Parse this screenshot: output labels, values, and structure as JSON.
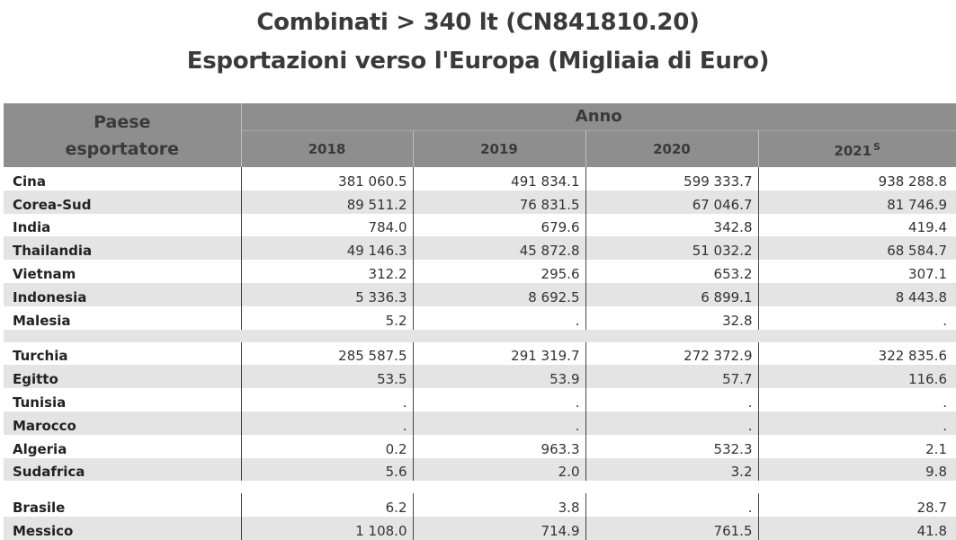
{
  "title": {
    "line1": "Combinati > 340 lt (CN841810.20)",
    "line2": "Esportazioni verso l'Europa (Migliaia di Euro)"
  },
  "header": {
    "country_label_line1": "Paese",
    "country_label_line2": "esportatore",
    "year_group_label": "Anno",
    "years": [
      "2018",
      "2019",
      "2020",
      "2021"
    ],
    "year_2021_flag": "S"
  },
  "rows": [
    {
      "country": "Cina",
      "values": [
        "381 060.5",
        "491 834.1",
        "599 333.7",
        "938 288.8"
      ]
    },
    {
      "country": "Corea-Sud",
      "values": [
        "89 511.2",
        "76 831.5",
        "67 046.7",
        "81 746.9"
      ]
    },
    {
      "country": "India",
      "values": [
        "784.0",
        "679.6",
        "342.8",
        "419.4"
      ]
    },
    {
      "country": "Thailandia",
      "values": [
        "49 146.3",
        "45 872.8",
        "51 032.2",
        "68 584.7"
      ]
    },
    {
      "country": "Vietnam",
      "values": [
        "312.2",
        "295.6",
        "653.2",
        "307.1"
      ]
    },
    {
      "country": "Indonesia",
      "values": [
        "5 336.3",
        "8 692.5",
        "6 899.1",
        "8 443.8"
      ]
    },
    {
      "country": "Malesia",
      "values": [
        "5.2",
        ".",
        "32.8",
        "."
      ]
    },
    {
      "country": "Turchia",
      "values": [
        "285 587.5",
        "291 319.7",
        "272 372.9",
        "322 835.6"
      ]
    },
    {
      "country": "Egitto",
      "values": [
        "53.5",
        "53.9",
        "57.7",
        "116.6"
      ]
    },
    {
      "country": "Tunisia",
      "values": [
        ".",
        ".",
        ".",
        "."
      ]
    },
    {
      "country": "Marocco",
      "values": [
        ".",
        ".",
        ".",
        "."
      ]
    },
    {
      "country": "Algeria",
      "values": [
        "0.2",
        "963.3",
        "532.3",
        "2.1"
      ]
    },
    {
      "country": "Sudafrica",
      "values": [
        "5.6",
        "2.0",
        "3.2",
        "9.8"
      ]
    },
    {
      "country": "Brasile",
      "values": [
        "6.2",
        "3.8",
        ".",
        "28.7"
      ]
    },
    {
      "country": "Messico",
      "values": [
        "1 108.0",
        "714.9",
        "761.5",
        "41.8"
      ]
    }
  ]
}
